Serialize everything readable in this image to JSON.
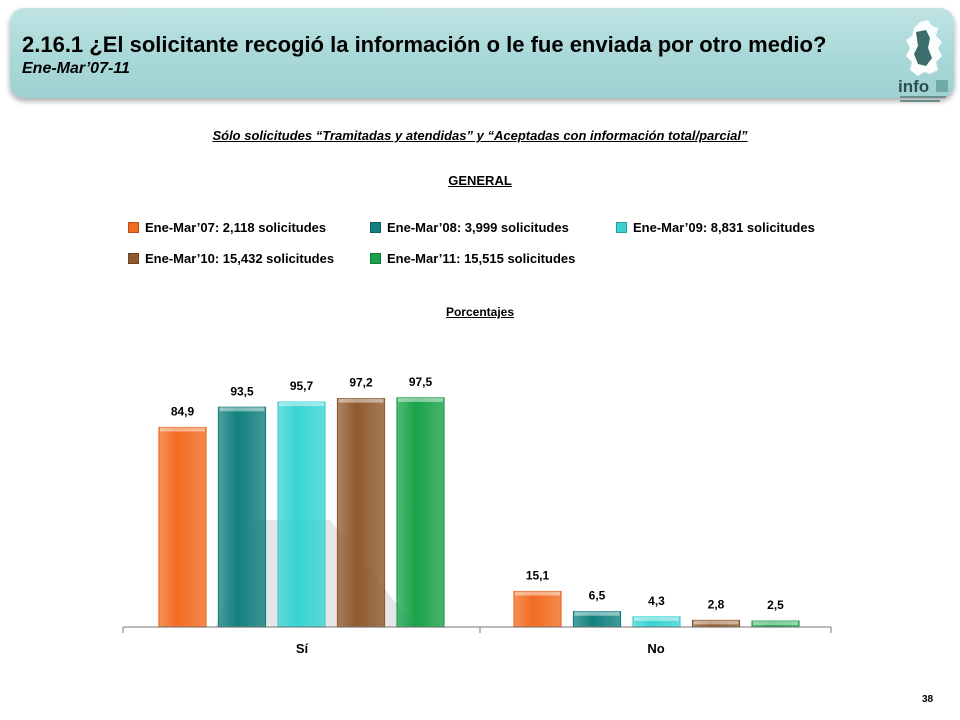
{
  "header": {
    "title": "2.16.1 ¿El solicitante recogió la información o le fue enviada por otro medio?",
    "subtitle": "Ene-Mar’07-11",
    "logo_text": "info"
  },
  "subtitle": "Sólo solicitudes “Tramitadas y atendidas” y “Aceptadas con información total/parcial”",
  "section_label": "GENERAL",
  "units_label": "Porcentajes",
  "page_number": "38",
  "colors": {
    "header_bg": "#a9d8d8",
    "series": [
      "#f26b21",
      "#12807f",
      "#39d3d4",
      "#8f5a2e",
      "#1aa24a"
    ]
  },
  "chart_data": {
    "type": "bar",
    "categories": [
      "Sí",
      "No"
    ],
    "series": [
      {
        "name": "Ene-Mar’07: 2,118 solicitudes",
        "values": [
          84.9,
          15.1
        ],
        "labels": [
          "84,9",
          "15,1"
        ]
      },
      {
        "name": "Ene-Mar’08: 3,999 solicitudes",
        "values": [
          93.5,
          6.5
        ],
        "labels": [
          "93,5",
          "6,5"
        ]
      },
      {
        "name": "Ene-Mar’09: 8,831 solicitudes",
        "values": [
          95.7,
          4.3
        ],
        "labels": [
          "95,7",
          "4,3"
        ]
      },
      {
        "name": "Ene-Mar’10: 15,432 solicitudes",
        "values": [
          97.2,
          2.8
        ],
        "labels": [
          "97,2",
          "2,8"
        ]
      },
      {
        "name": "Ene-Mar’11: 15,515 solicitudes",
        "values": [
          97.5,
          2.5
        ],
        "labels": [
          "97,5",
          "2,5"
        ]
      }
    ],
    "ylim": [
      0,
      100
    ],
    "grid": false,
    "legend_position": "top"
  }
}
